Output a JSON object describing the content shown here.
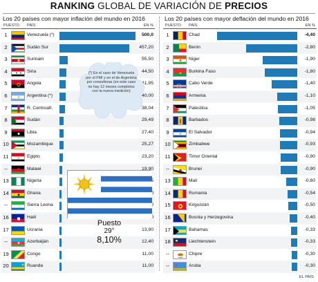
{
  "title": {
    "bold_part": "RANKING",
    "mid_part": " GLOBAL DE VARIACIÓN DE ",
    "end_part": "PRECIOS"
  },
  "headers": {
    "rank": "PUESTO",
    "country": "PAÍS",
    "unit": "EN %"
  },
  "note": "(*) En el caso de Venezuela por el FMI y en el de Argentina por consultoras (en este caso no hay 12 meses completos con la nueva medición)",
  "uruguay": {
    "line1": "Puesto",
    "line2": "29°",
    "line3": "8,10%"
  },
  "source": "EL PAÍS",
  "colors": {
    "bar": "#1f7ab6",
    "row_alt": "#f1f3f5"
  },
  "chart_data": [
    {
      "type": "bar",
      "orientation": "horizontal",
      "title": "Los 20 países con mayor inflación del mundo en 2016",
      "unit": "EN %",
      "ranks": [
        "1",
        "2",
        "3",
        "4",
        "5",
        "6",
        "7",
        "8",
        "9",
        "10",
        "11",
        "--",
        "13",
        "14",
        "--",
        "16",
        "17",
        "--",
        "19",
        "20"
      ],
      "categories": [
        "Venezuela (*)",
        "Sudán Sur",
        "Surinam",
        "Siria",
        "Angola",
        "Argentina (*)",
        "R. Centroafr.",
        "Sudán",
        "Libia",
        "Mozambique",
        "Egipto",
        "Malawi",
        "Nigeria",
        "Ghana",
        "Sierra Leona",
        "Haití",
        "Ucrania",
        "Azerbaiján",
        "Congo",
        "Ruanda"
      ],
      "value_labels": [
        "500,0",
        "457,20",
        "55,50",
        "44,50",
        "41,95",
        "40,00",
        "38,04",
        "29,49",
        "27,40",
        "25,27",
        "23,20",
        "19,90",
        "18,55",
        "15,40",
        "15,00",
        "14,20",
        "13,90",
        "12,40",
        "11,00",
        "11,00"
      ],
      "values": [
        500.0,
        457.2,
        55.5,
        44.5,
        41.95,
        40.0,
        38.04,
        29.49,
        27.4,
        25.27,
        23.2,
        19.9,
        18.55,
        15.4,
        15.0,
        14.2,
        13.9,
        12.4,
        11.0,
        11.0
      ],
      "flags": [
        "venezuela",
        "south-sudan",
        "suriname",
        "syria",
        "angola",
        "argentina",
        "car",
        "sudan",
        "libya",
        "mozambique",
        "egypt",
        "malawi",
        "nigeria",
        "ghana",
        "sierra-leone",
        "haiti",
        "ukraine",
        "azerbaijan",
        "congo",
        "rwanda"
      ]
    },
    {
      "type": "bar",
      "orientation": "horizontal",
      "title": "Los 20 países con mayor deflación del mundo en 2016",
      "unit": "EN %",
      "ranks": [
        "1",
        "2",
        "3",
        "4",
        "5",
        "6",
        "7",
        "8",
        "9",
        "10",
        "11",
        "--",
        "13",
        "14",
        "15",
        "16",
        "17",
        "18",
        "--",
        "--"
      ],
      "categories": [
        "Chad",
        "Benin",
        "Niger",
        "Burkina Faso",
        "Cabo Verde",
        "Armenia",
        "Palestina",
        "Barbados",
        "El Salvador",
        "Zimbabwe",
        "Timor Oriental",
        "Brunei",
        "Mali",
        "Rumania",
        "Kirguistán",
        "Bosnia y Herzegovina",
        "Bahamas",
        "Liechtenstein",
        "Chipre",
        "Aruba"
      ],
      "value_labels": [
        "-4,40",
        "-2,80",
        "-1,90",
        "-1,80",
        "-1,40",
        "-1,10",
        "-1,05",
        "-0,98",
        "-0,94",
        "-0,93",
        "-0,90",
        "-0,90",
        "-0,60",
        "-0,54",
        "-0,50",
        "-0,40",
        "-0,33",
        "-0,33",
        "-0,30",
        "-0,30"
      ],
      "values": [
        -4.4,
        -2.8,
        -1.9,
        -1.8,
        -1.4,
        -1.1,
        -1.05,
        -0.98,
        -0.94,
        -0.93,
        -0.9,
        -0.9,
        -0.6,
        -0.54,
        -0.5,
        -0.4,
        -0.33,
        -0.33,
        -0.3,
        -0.3
      ],
      "flags": [
        "chad",
        "benin",
        "niger",
        "burkina-faso",
        "cape-verde",
        "armenia",
        "palestine",
        "barbados",
        "el-salvador",
        "zimbabwe",
        "east-timor",
        "brunei",
        "mali",
        "romania",
        "kyrgyzstan",
        "bosnia",
        "bahamas",
        "liechtenstein",
        "cyprus",
        "aruba"
      ]
    }
  ]
}
